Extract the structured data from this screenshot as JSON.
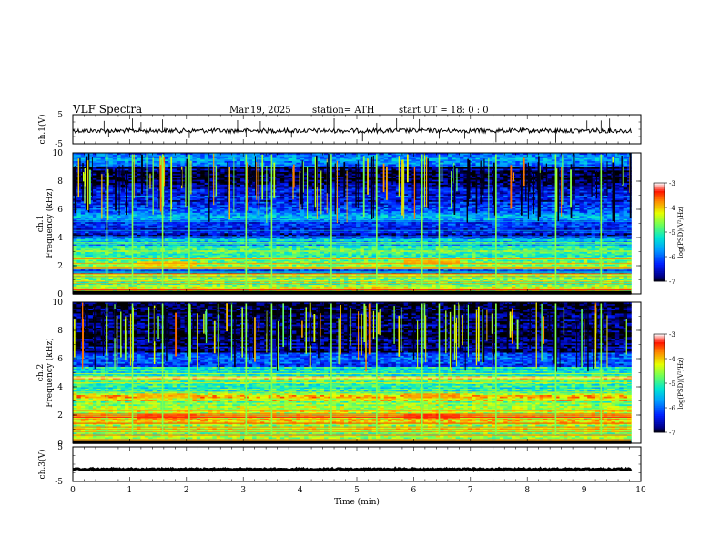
{
  "header": {
    "title": "VLF  Spectra",
    "date": "Mar.19, 2025",
    "station": "station= ATH",
    "start_ut": "start  UT  =    18: 0   : 0"
  },
  "chart_data": [
    {
      "type": "line",
      "name": "ch1-waveform",
      "ylabel": "ch.1(V)",
      "ylim": [
        -5,
        5
      ],
      "yticks": [
        "5",
        "-5"
      ],
      "xlim": [
        0,
        10
      ],
      "color": "#000000",
      "approx_level_v": -0.5,
      "spike_times_min": [
        0.55,
        0.63,
        1.05,
        1.2,
        1.58,
        2.05,
        2.9,
        3.05,
        3.3,
        3.85,
        4.6,
        5.1,
        5.35,
        5.7,
        6.1,
        6.45,
        6.9,
        7.45,
        7.75,
        8.5,
        9.05,
        9.3,
        9.45
      ]
    },
    {
      "type": "heatmap",
      "name": "ch1-spectrogram",
      "ylabel": "ch.1\nFrequency  (kHz)",
      "ylim": [
        0,
        10
      ],
      "yticks": [
        "0",
        "2",
        "4",
        "6",
        "8",
        "10"
      ],
      "xlim": [
        0,
        9.83
      ],
      "colorbar": {
        "label": "log(PSD)(V²/Hz)",
        "range": [
          -7,
          -3
        ],
        "ticks": [
          "-3",
          "-4",
          "-5",
          "-6",
          "-7"
        ]
      },
      "bands": [
        {
          "from": 0.0,
          "to": 0.1,
          "level": -7
        },
        {
          "from": 0.1,
          "to": 0.25,
          "level": -3.6
        },
        {
          "from": 0.25,
          "to": 0.6,
          "level": -4.2
        },
        {
          "from": 0.6,
          "to": 1.0,
          "level": -4.7
        },
        {
          "from": 1.0,
          "to": 1.5,
          "level": -4.6
        },
        {
          "from": 1.5,
          "to": 1.75,
          "level": -6.2
        },
        {
          "from": 1.75,
          "to": 2.6,
          "level": -4.6
        },
        {
          "from": 2.6,
          "to": 3.4,
          "level": -5.0
        },
        {
          "from": 3.4,
          "to": 4.0,
          "level": -5.5
        },
        {
          "from": 4.0,
          "to": 5.2,
          "level": -6.4
        },
        {
          "from": 5.2,
          "to": 5.8,
          "level": -5.6
        },
        {
          "from": 5.8,
          "to": 6.6,
          "level": -6.2
        },
        {
          "from": 6.6,
          "to": 7.6,
          "level": -6.3
        },
        {
          "from": 7.6,
          "to": 9.0,
          "level": -6.8
        },
        {
          "from": 9.0,
          "to": 10.0,
          "level": -5.8
        }
      ],
      "patches": [
        {
          "t0": 1.1,
          "t1": 2.2,
          "f0": 2.0,
          "f1": 2.3,
          "level": -4.0
        },
        {
          "t0": 5.8,
          "t1": 6.8,
          "f0": 2.1,
          "f1": 2.4,
          "level": -3.9
        }
      ],
      "bursts_min": [
        0.6,
        1.05,
        1.58,
        2.05,
        3.05,
        3.5,
        4.55,
        5.35,
        6.15,
        6.45,
        7.45,
        8.5,
        9.3
      ]
    },
    {
      "type": "heatmap",
      "name": "ch2-spectrogram",
      "ylabel": "ch.2\nFrequency  (kHz)",
      "ylim": [
        0,
        10
      ],
      "yticks": [
        "0",
        "2",
        "4",
        "6",
        "8",
        "10"
      ],
      "xlim": [
        0,
        9.83
      ],
      "colorbar": {
        "label": "log(PSD)(V²/Hz)",
        "range": [
          -7,
          -3
        ],
        "ticks": [
          "-3",
          "-4",
          "-5",
          "-6",
          "-7"
        ]
      },
      "bands": [
        {
          "from": 0.0,
          "to": 0.1,
          "level": -7
        },
        {
          "from": 0.1,
          "to": 0.9,
          "level": -4.6
        },
        {
          "from": 0.9,
          "to": 1.5,
          "level": -4.4
        },
        {
          "from": 1.5,
          "to": 2.3,
          "level": -4.2
        },
        {
          "from": 2.3,
          "to": 3.0,
          "level": -4.6
        },
        {
          "from": 3.0,
          "to": 3.6,
          "level": -4.1
        },
        {
          "from": 3.6,
          "to": 4.6,
          "level": -5.0
        },
        {
          "from": 4.6,
          "to": 4.8,
          "level": -3.9
        },
        {
          "from": 4.8,
          "to": 5.4,
          "level": -5.2
        },
        {
          "from": 5.4,
          "to": 6.4,
          "level": -6.0
        },
        {
          "from": 6.4,
          "to": 7.4,
          "level": -6.7
        },
        {
          "from": 7.4,
          "to": 10.0,
          "level": -6.9
        }
      ],
      "patches": [
        {
          "t0": 1.1,
          "t1": 2.2,
          "f0": 1.8,
          "f1": 2.1,
          "level": -3.6
        },
        {
          "t0": 5.8,
          "t1": 6.8,
          "f0": 1.8,
          "f1": 2.1,
          "level": -3.5
        },
        {
          "t0": 1.1,
          "t1": 2.2,
          "f0": 3.2,
          "f1": 3.5,
          "level": -3.9
        },
        {
          "t0": 5.8,
          "t1": 6.8,
          "f0": 3.2,
          "f1": 3.5,
          "level": -3.8
        }
      ],
      "bursts_min": [
        0.6,
        1.05,
        1.58,
        2.05,
        3.05,
        3.5,
        4.55,
        5.35,
        6.15,
        6.45,
        7.45,
        8.5,
        9.3
      ]
    },
    {
      "type": "line",
      "name": "ch3-waveform",
      "ylabel": "ch.3(V)",
      "ylim": [
        -5,
        5
      ],
      "yticks": [
        "5",
        "-5"
      ],
      "xlim": [
        0,
        10
      ],
      "color": "#000000",
      "approx_level_v": -1.5
    }
  ],
  "xaxis": {
    "label": "Time  (min)",
    "range": [
      0,
      10
    ],
    "ticks": [
      "0",
      "1",
      "2",
      "3",
      "4",
      "5",
      "6",
      "7",
      "8",
      "9",
      "10"
    ]
  }
}
